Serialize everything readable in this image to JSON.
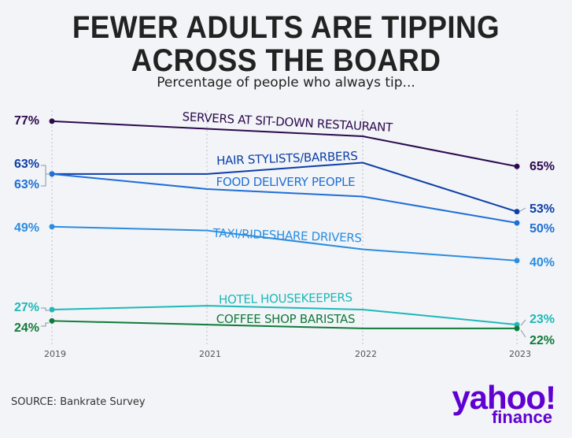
{
  "header": {
    "title_line1": "FEWER ADULTS ARE TIPPING",
    "title_line2": "ACROSS THE BOARD",
    "subtitle": "Percentage of people who always tip..."
  },
  "footer": {
    "source": "SOURCE: Bankrate Survey",
    "logo_line1": "yahoo!",
    "logo_line2": "finance"
  },
  "chart_data": {
    "type": "line",
    "x": [
      "2019",
      "2021",
      "2022",
      "2023"
    ],
    "ylabel": "",
    "xlabel": "",
    "grid": "vertical dotted lines at each year",
    "legend": "inline labels above lines",
    "series": [
      {
        "name": "SERVERS AT SIT-DOWN RESTAURANT",
        "values": [
          77,
          75,
          73,
          65
        ],
        "color": "#2d0a4e",
        "start_label": "77%",
        "end_label": "65%"
      },
      {
        "name": "HAIR STYLISTS/BARBERS",
        "values": [
          63,
          63,
          66,
          53
        ],
        "color": "#0d3ea8",
        "start_label": "63%",
        "end_label": "53%"
      },
      {
        "name": "FOOD DELIVERY PEOPLE",
        "values": [
          63,
          59,
          57,
          50
        ],
        "color": "#1f6fd6",
        "start_label": "63%",
        "end_label": "50%"
      },
      {
        "name": "TAXI/RIDESHARE DRIVERS",
        "values": [
          49,
          48,
          43,
          40
        ],
        "color": "#2a8de0",
        "start_label": "49%",
        "end_label": "40%"
      },
      {
        "name": "HOTEL HOUSEKEEPERS",
        "values": [
          27,
          28,
          27,
          23
        ],
        "color": "#1fb8b8",
        "start_label": "27%",
        "end_label": "23%"
      },
      {
        "name": "COFFEE SHOP BARISTAS",
        "values": [
          24,
          23,
          22,
          22
        ],
        "color": "#107a3a",
        "start_label": "24%",
        "end_label": "22%"
      }
    ]
  }
}
